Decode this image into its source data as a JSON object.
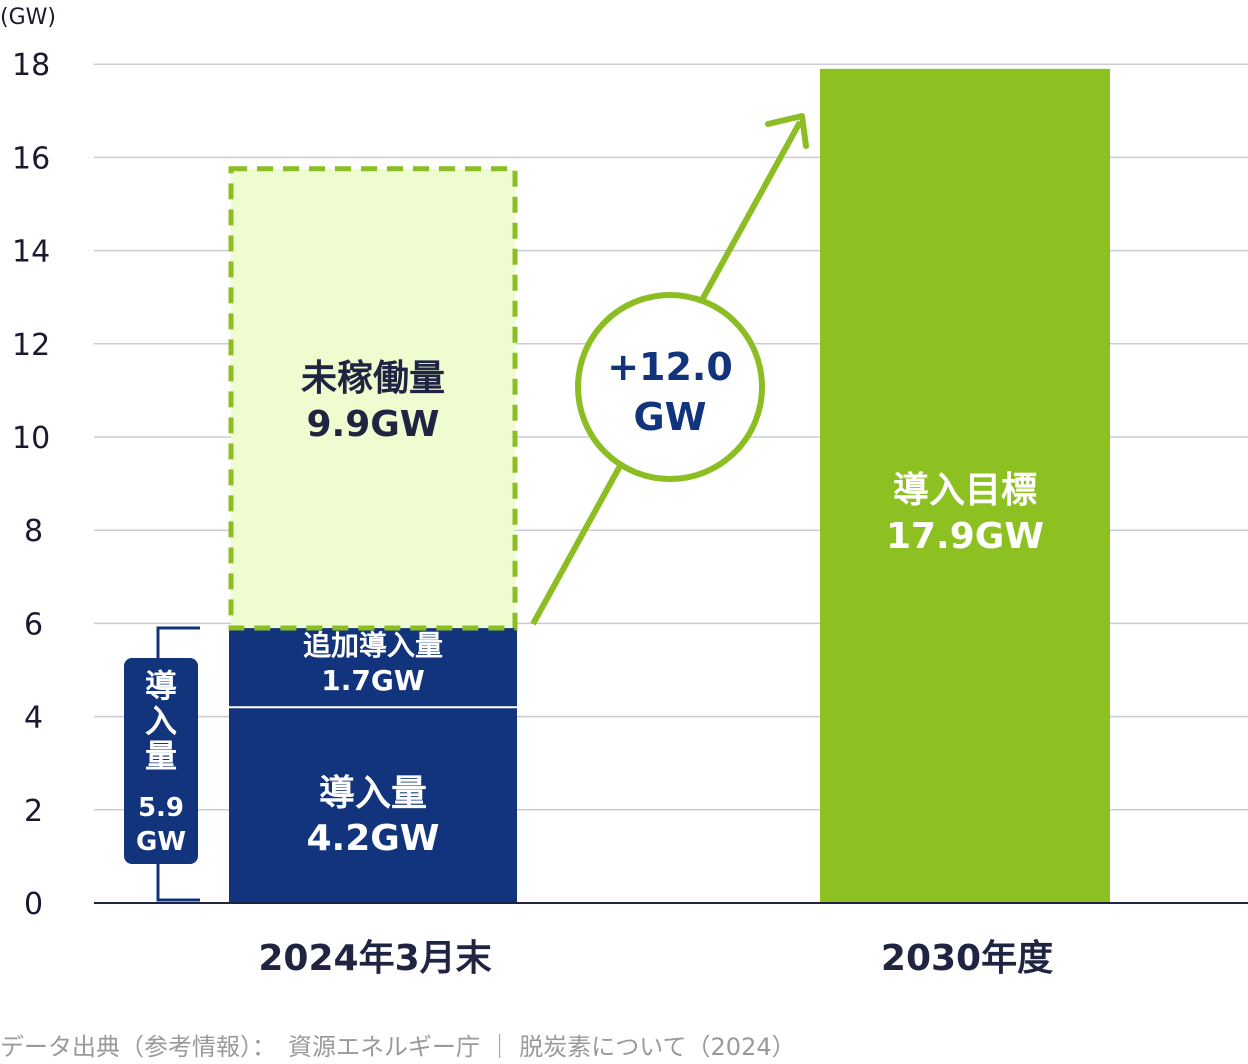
{
  "chart_data": {
    "type": "bar",
    "y_unit": "(GW)",
    "ylim": [
      0,
      18
    ],
    "yticks": [
      0,
      2,
      4,
      6,
      8,
      10,
      12,
      14,
      16,
      18
    ],
    "grid": true,
    "categories": [
      "2024年3月末",
      "2030年度"
    ],
    "stack_2024": [
      {
        "value": 4.2,
        "label_line1": "導入量",
        "label_line2": "4.2GW",
        "color": "#12347c"
      },
      {
        "value": 1.7,
        "label_line1": "追加導入量",
        "label_line2": "1.7GW",
        "color": "#12347c"
      },
      {
        "value": 9.9,
        "label_line1": "未稼働量",
        "label_line2": "9.9GW",
        "color": "#eefcd0",
        "border": "#8cbe23"
      }
    ],
    "bar_2030": {
      "value": 17.9,
      "label_line1": "導入目標",
      "label_line2": "17.9GW",
      "color": "#8cc121"
    },
    "bracket": {
      "value": 5.9,
      "label_chars": [
        "導",
        "入",
        "量"
      ],
      "value_text": "5.9",
      "unit_text": "GW"
    },
    "increase": {
      "line1": "+12.0",
      "line2": "GW"
    },
    "colors": {
      "navy": "#12347c",
      "green": "#8cc121",
      "grid": "#c9ccd8",
      "text": "#1f2440"
    }
  },
  "source": "データ出典（参考情報）：　資源エネルギー庁 ｜ 脱炭素について（2024）"
}
